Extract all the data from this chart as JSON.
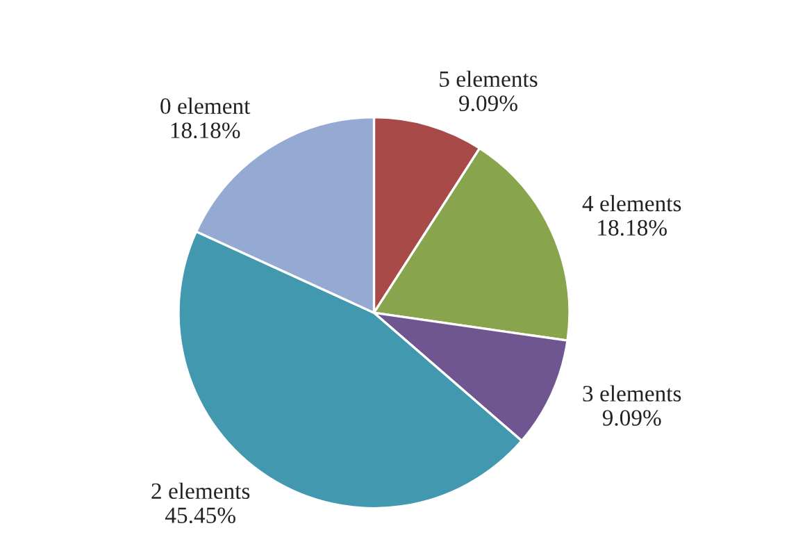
{
  "chart_data": {
    "type": "pie",
    "categories": [
      "5 elements",
      "4 elements",
      "3 elements",
      "2 elements",
      "0 element"
    ],
    "values": [
      9.09,
      18.18,
      9.09,
      45.45,
      18.18
    ],
    "value_labels": [
      "9.09%",
      "18.18%",
      "9.09%",
      "45.45%",
      "18.18%"
    ],
    "colors": [
      "#a84a47",
      "#88a54e",
      "#705690",
      "#4198af",
      "#94aad2"
    ],
    "legend": false
  }
}
